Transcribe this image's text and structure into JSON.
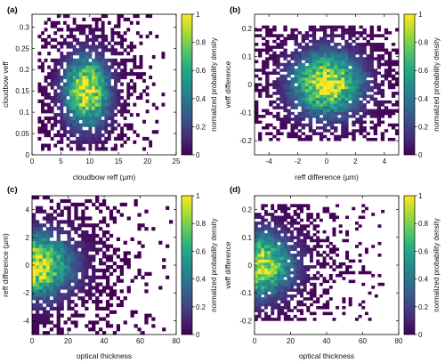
{
  "colorbar": {
    "label": "normalized probability density",
    "ticks": [
      0,
      0.2,
      0.4,
      0.6,
      0.8,
      1
    ],
    "tick_labels": [
      "0",
      "0.2",
      "0.4",
      "0.6",
      "0.8",
      "1"
    ],
    "colormap": "viridis"
  },
  "chart_data": [
    {
      "type": "heatmap",
      "panel": "(a)",
      "xlabel": "cloudbow reff (µm)",
      "ylabel": "cloudbow veff",
      "xlim": [
        0,
        25
      ],
      "ylim": [
        0,
        0.33
      ],
      "xticks": [
        0,
        5,
        10,
        15,
        20,
        25
      ],
      "yticks": [
        0,
        0.05,
        0.1,
        0.15,
        0.2,
        0.25,
        0.3
      ],
      "xtick_labels": [
        "0",
        "5",
        "10",
        "15",
        "20",
        "25"
      ],
      "ytick_labels": [
        "0",
        "0.05",
        "0.1",
        "0.15",
        "0.2",
        "0.25",
        "0.3"
      ],
      "peak": [
        9.5,
        0.15
      ],
      "spread": [
        2.6,
        0.055
      ],
      "extent_x": [
        1,
        23
      ],
      "extent_y": [
        0.01,
        0.33
      ],
      "nbins": [
        40,
        40
      ],
      "seed": 11
    },
    {
      "type": "heatmap",
      "panel": "(b)",
      "xlabel": "reff difference (µm)",
      "ylabel": "veff difference",
      "xlim": [
        -5,
        5
      ],
      "ylim": [
        -0.25,
        0.25
      ],
      "xticks": [
        -4,
        -2,
        0,
        2,
        4
      ],
      "yticks": [
        -0.2,
        -0.1,
        0,
        0.1,
        0.2
      ],
      "xtick_labels": [
        "-4",
        "-2",
        "0",
        "2",
        "4"
      ],
      "ytick_labels": [
        "-0.2",
        "-0.1",
        "0",
        "0.1",
        "0.2"
      ],
      "peak": [
        0,
        0.005
      ],
      "spread": [
        1.6,
        0.075
      ],
      "extent_x": [
        -5,
        5
      ],
      "extent_y": [
        -0.2,
        0.21
      ],
      "nbins": [
        40,
        40
      ],
      "seed": 23
    },
    {
      "type": "heatmap",
      "panel": "(c)",
      "xlabel": "optical thickness",
      "ylabel": "reff difference (µm)",
      "xlim": [
        0,
        80
      ],
      "ylim": [
        -5,
        5
      ],
      "xticks": [
        0,
        20,
        40,
        60,
        80
      ],
      "yticks": [
        -4,
        -2,
        0,
        2,
        4
      ],
      "xtick_labels": [
        "0",
        "20",
        "40",
        "60",
        "80"
      ],
      "ytick_labels": [
        "-4",
        "-2",
        "0",
        "2",
        "4"
      ],
      "peak": [
        1,
        0
      ],
      "spread": [
        14,
        1.5
      ],
      "extent_x": [
        0,
        78
      ],
      "extent_y": [
        -5,
        5
      ],
      "nbins": [
        40,
        40
      ],
      "seed": 37
    },
    {
      "type": "heatmap",
      "panel": "(d)",
      "xlabel": "optical thickness",
      "ylabel": "veff difference",
      "xlim": [
        0,
        80
      ],
      "ylim": [
        -0.25,
        0.25
      ],
      "xticks": [
        0,
        20,
        40,
        60,
        80
      ],
      "yticks": [
        -0.2,
        -0.1,
        0,
        0.1,
        0.2
      ],
      "xtick_labels": [
        "0",
        "20",
        "40",
        "60",
        "80"
      ],
      "ytick_labels": [
        "-0.2",
        "-0.1",
        "0",
        "0.1",
        "0.2"
      ],
      "peak": [
        1,
        0
      ],
      "spread": [
        13,
        0.075
      ],
      "extent_x": [
        0,
        72
      ],
      "extent_y": [
        -0.2,
        0.22
      ],
      "nbins": [
        40,
        40
      ],
      "seed": 53
    }
  ]
}
